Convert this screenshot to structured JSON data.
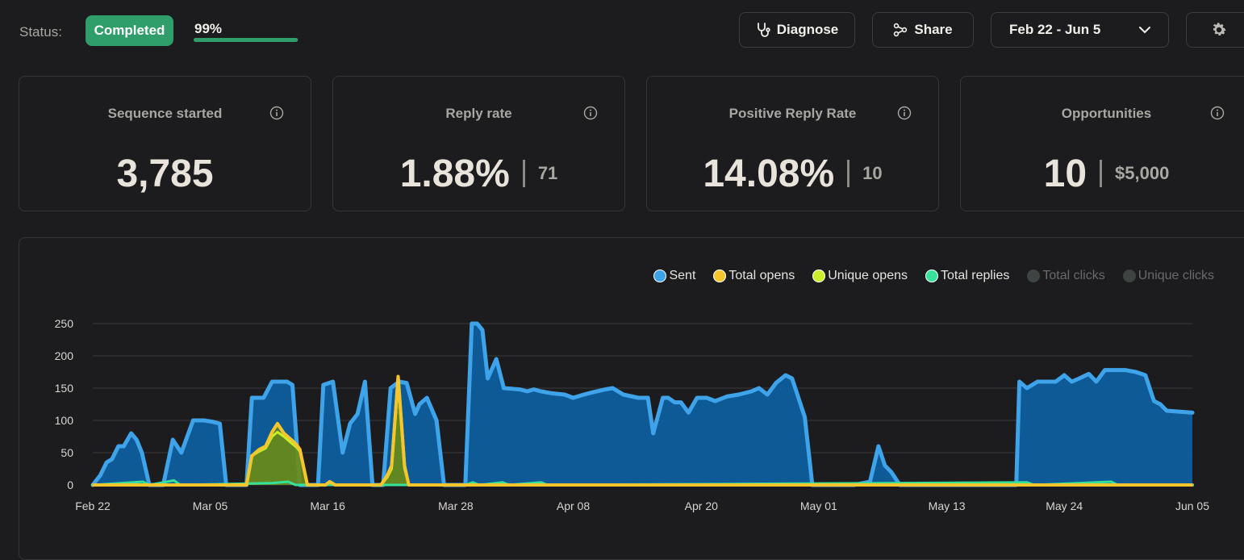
{
  "header": {
    "status_label": "Status:",
    "status_badge": "Completed",
    "progress_text": "99%",
    "progress_value": 0.99,
    "diagnose_label": "Diagnose",
    "share_label": "Share",
    "date_range": "Feb 22 - Jun 5"
  },
  "cards": [
    {
      "title": "Sequence started",
      "value": "3,785",
      "secondary": ""
    },
    {
      "title": "Reply rate",
      "value": "1.88%",
      "secondary": "71"
    },
    {
      "title": "Positive Reply Rate",
      "value": "14.08%",
      "secondary": "10"
    },
    {
      "title": "Opportunities",
      "value": "10",
      "secondary": "$5,000"
    }
  ],
  "colors": {
    "accent_green": "#2f9e6a",
    "sent": "#3fa3ea",
    "total_opens": "#f5c52d",
    "unique_opens": "#c8ef2a",
    "total_replies": "#36e29a",
    "disabled": "#3d4442"
  },
  "icons": {
    "diagnose": "stethoscope-icon",
    "share": "share-nodes-icon",
    "date": "chevron-down-icon",
    "settings": "gear-icon",
    "info": "info-icon"
  },
  "chart_data": {
    "type": "area",
    "legend": [
      {
        "name": "Sent",
        "color": "#3fa3ea",
        "enabled": true
      },
      {
        "name": "Total opens",
        "color": "#f5c52d",
        "enabled": true
      },
      {
        "name": "Unique opens",
        "color": "#c8ef2a",
        "enabled": true
      },
      {
        "name": "Total replies",
        "color": "#36e29a",
        "enabled": true
      },
      {
        "name": "Total clicks",
        "color": "#3d4442",
        "enabled": false
      },
      {
        "name": "Unique clicks",
        "color": "#3d4442",
        "enabled": false
      }
    ],
    "y_ticks": [
      0,
      50,
      100,
      150,
      200,
      250
    ],
    "ylim": [
      0,
      250
    ],
    "x_ticks": [
      "Feb 22",
      "Mar 05",
      "Mar 16",
      "Mar 28",
      "Apr 08",
      "Apr 20",
      "May 01",
      "May 13",
      "May 24",
      "Jun 05"
    ],
    "x_tick_days": [
      0,
      11,
      22,
      34,
      45,
      57,
      68,
      80,
      91,
      103
    ],
    "xlim": [
      0,
      103
    ],
    "series": [
      {
        "name": "Sent",
        "points": [
          [
            0,
            0
          ],
          [
            0.7,
            15
          ],
          [
            1.3,
            35
          ],
          [
            1.8,
            40
          ],
          [
            2.4,
            60
          ],
          [
            2.9,
            60
          ],
          [
            3.6,
            80
          ],
          [
            4.1,
            70
          ],
          [
            4.6,
            50
          ],
          [
            5.3,
            0
          ],
          [
            6.6,
            0
          ],
          [
            7.5,
            70
          ],
          [
            8.3,
            50
          ],
          [
            9.4,
            100
          ],
          [
            10.4,
            100
          ],
          [
            11.2,
            98
          ],
          [
            11.9,
            95
          ],
          [
            12.5,
            0
          ],
          [
            14.4,
            0
          ],
          [
            14.9,
            135
          ],
          [
            16.0,
            135
          ],
          [
            16.8,
            160
          ],
          [
            18.2,
            160
          ],
          [
            18.7,
            155
          ],
          [
            19.4,
            0
          ],
          [
            21.1,
            0
          ],
          [
            21.6,
            155
          ],
          [
            22.5,
            160
          ],
          [
            23.4,
            50
          ],
          [
            24.1,
            95
          ],
          [
            24.8,
            110
          ],
          [
            25.5,
            160
          ],
          [
            26.2,
            0
          ],
          [
            27.2,
            0
          ],
          [
            27.9,
            150
          ],
          [
            28.7,
            160
          ],
          [
            29.4,
            158
          ],
          [
            30.2,
            110
          ],
          [
            30.6,
            125
          ],
          [
            31.3,
            135
          ],
          [
            32.2,
            100
          ],
          [
            32.9,
            0
          ],
          [
            34.9,
            0
          ],
          [
            35.5,
            250
          ],
          [
            36.0,
            250
          ],
          [
            36.5,
            240
          ],
          [
            37.0,
            165
          ],
          [
            37.8,
            195
          ],
          [
            38.5,
            150
          ],
          [
            40.0,
            148
          ],
          [
            40.7,
            145
          ],
          [
            41.3,
            148
          ],
          [
            42.0,
            145
          ],
          [
            43.0,
            142
          ],
          [
            44.2,
            140
          ],
          [
            45.0,
            135
          ],
          [
            46.0,
            140
          ],
          [
            46.7,
            143
          ],
          [
            48.0,
            148
          ],
          [
            48.7,
            150
          ],
          [
            49.7,
            140
          ],
          [
            51.1,
            135
          ],
          [
            52.0,
            135
          ],
          [
            52.5,
            80
          ],
          [
            53.4,
            135
          ],
          [
            53.9,
            135
          ],
          [
            54.5,
            128
          ],
          [
            55.1,
            128
          ],
          [
            55.8,
            112
          ],
          [
            56.6,
            135
          ],
          [
            57.5,
            135
          ],
          [
            58.3,
            130
          ],
          [
            59.4,
            137
          ],
          [
            60.5,
            140
          ],
          [
            61.7,
            145
          ],
          [
            62.4,
            150
          ],
          [
            63.2,
            140
          ],
          [
            64.0,
            158
          ],
          [
            64.9,
            170
          ],
          [
            65.5,
            165
          ],
          [
            66.7,
            105
          ],
          [
            67.4,
            0
          ],
          [
            71.3,
            0
          ],
          [
            72.8,
            5
          ],
          [
            73.6,
            60
          ],
          [
            74.2,
            30
          ],
          [
            74.8,
            20
          ],
          [
            75.6,
            0
          ],
          [
            79.0,
            0
          ],
          [
            86.5,
            0
          ],
          [
            86.8,
            160
          ],
          [
            87.5,
            150
          ],
          [
            88.5,
            160
          ],
          [
            90.2,
            160
          ],
          [
            91.0,
            170
          ],
          [
            91.7,
            160
          ],
          [
            92.4,
            165
          ],
          [
            93.3,
            172
          ],
          [
            94.0,
            160
          ],
          [
            94.8,
            178
          ],
          [
            96.7,
            178
          ],
          [
            97.7,
            175
          ],
          [
            98.6,
            170
          ],
          [
            99.4,
            130
          ],
          [
            100.0,
            125
          ],
          [
            100.6,
            115
          ],
          [
            103,
            112
          ]
        ]
      },
      {
        "name": "Total opens",
        "points": [
          [
            0,
            0
          ],
          [
            13.3,
            0
          ],
          [
            14.4,
            0
          ],
          [
            14.9,
            45
          ],
          [
            15.6,
            55
          ],
          [
            16.2,
            60
          ],
          [
            16.8,
            82
          ],
          [
            17.3,
            95
          ],
          [
            17.9,
            80
          ],
          [
            18.6,
            70
          ],
          [
            19.1,
            62
          ],
          [
            19.4,
            55
          ],
          [
            20.1,
            0
          ],
          [
            21.8,
            0
          ],
          [
            22.2,
            5
          ],
          [
            22.7,
            0
          ],
          [
            27.0,
            0
          ],
          [
            27.6,
            15
          ],
          [
            28.0,
            30
          ],
          [
            28.6,
            168
          ],
          [
            29.2,
            30
          ],
          [
            29.6,
            0
          ],
          [
            103,
            0
          ]
        ]
      },
      {
        "name": "Unique opens",
        "points": [
          [
            0,
            0
          ],
          [
            13.3,
            0
          ],
          [
            14.4,
            0
          ],
          [
            14.9,
            45
          ],
          [
            15.6,
            52
          ],
          [
            16.2,
            57
          ],
          [
            16.8,
            75
          ],
          [
            17.3,
            82
          ],
          [
            17.9,
            75
          ],
          [
            18.6,
            65
          ],
          [
            19.1,
            58
          ],
          [
            19.4,
            52
          ],
          [
            20.1,
            0
          ],
          [
            21.8,
            0
          ],
          [
            22.2,
            4
          ],
          [
            22.7,
            0
          ],
          [
            27.0,
            0
          ],
          [
            27.6,
            12
          ],
          [
            28.0,
            25
          ],
          [
            28.6,
            158
          ],
          [
            29.2,
            25
          ],
          [
            29.6,
            0
          ],
          [
            103,
            0
          ]
        ]
      },
      {
        "name": "Total replies",
        "points": [
          [
            0,
            0
          ],
          [
            4.7,
            5
          ],
          [
            5.3,
            0
          ],
          [
            7.6,
            7
          ],
          [
            8.2,
            0
          ],
          [
            16.8,
            3
          ],
          [
            18.3,
            5
          ],
          [
            19.0,
            0
          ],
          [
            34.9,
            0
          ],
          [
            35.6,
            4
          ],
          [
            36.2,
            0
          ],
          [
            38.4,
            4
          ],
          [
            39.0,
            0
          ],
          [
            42.0,
            4
          ],
          [
            42.6,
            0
          ],
          [
            87.5,
            4
          ],
          [
            88.2,
            0
          ],
          [
            95.4,
            5
          ],
          [
            96.0,
            0
          ],
          [
            103,
            0
          ]
        ]
      }
    ]
  }
}
